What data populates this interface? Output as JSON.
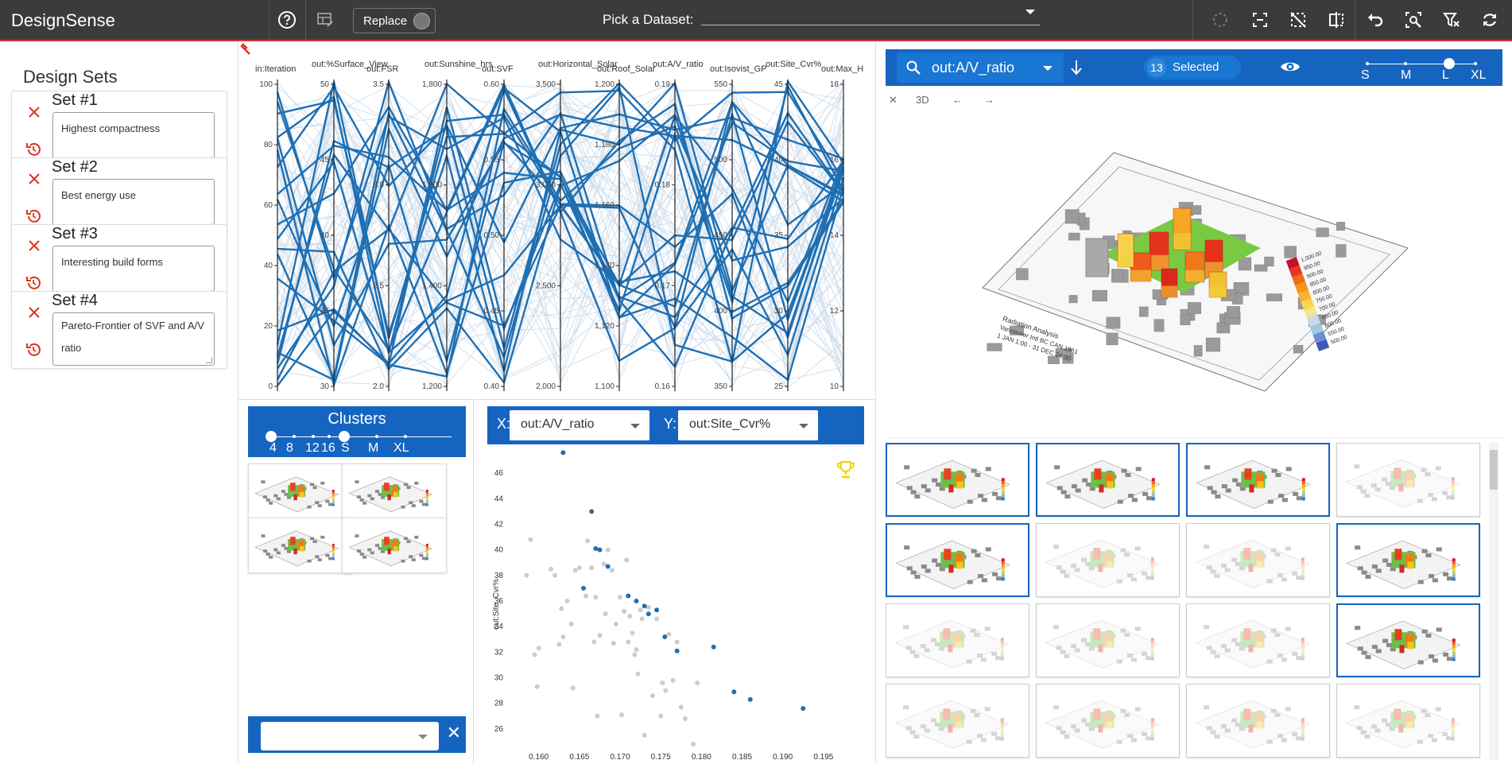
{
  "app": {
    "title": "DesignSense"
  },
  "toolbar": {
    "help_icon": "help-circle-icon",
    "table_icon": "table-edit-icon",
    "replace_label": "Replace",
    "dataset_label": "Pick a Dataset:",
    "dataset_value": "",
    "right_icons": [
      "lasso-select-icon",
      "box-select-icon",
      "deselect-icon",
      "split-view-icon",
      "undo-icon",
      "zoom-select-icon",
      "clear-filter-icon",
      "refresh-icon"
    ]
  },
  "sidebar": {
    "title": "Design Sets",
    "sets": [
      {
        "name": "Set #1",
        "note": "Highest compactness"
      },
      {
        "name": "Set #2",
        "note": "Best energy use"
      },
      {
        "name": "Set #3",
        "note": "Interesting build forms"
      },
      {
        "name": "Set #4",
        "note": "Pareto-Frontier of SVF and A/V ratio"
      }
    ]
  },
  "parallel": {
    "axes": [
      {
        "label": "in:Iteration",
        "ticks": [
          "100",
          "80",
          "60",
          "40",
          "20",
          "0"
        ]
      },
      {
        "label": "out:%Surface_View",
        "ticks": [
          "50",
          "45",
          "40",
          "35",
          "30"
        ]
      },
      {
        "label": "out:FSR",
        "ticks": [
          "3.5",
          "3.0",
          "2.5",
          "2.0"
        ]
      },
      {
        "label": "out:Sunshine_hrs",
        "ticks": [
          "1,800",
          "1,600",
          "1,400",
          "1,200"
        ]
      },
      {
        "label": "out:SVF",
        "ticks": [
          "0.60",
          "0.55",
          "0.50",
          "0.45",
          "0.40"
        ]
      },
      {
        "label": "out:Horizontal_Solar",
        "ticks": [
          "3,500",
          "3,000",
          "2,500",
          "2,000"
        ]
      },
      {
        "label": "out:Roof_Solar",
        "ticks": [
          "1,200",
          "1,180",
          "1,160",
          "1,140",
          "1,120",
          "1,100"
        ]
      },
      {
        "label": "out:A/V_ratio",
        "ticks": [
          "0.19",
          "0.18",
          "0.17",
          "0.16"
        ]
      },
      {
        "label": "out:Isovist_GP",
        "ticks": [
          "550",
          "500",
          "450",
          "400",
          "350"
        ]
      },
      {
        "label": "out:Site_Cvr%",
        "ticks": [
          "45",
          "40",
          "35",
          "30",
          "25"
        ]
      },
      {
        "label": "out:Max_H",
        "ticks": [
          "18",
          "16",
          "14",
          "12",
          "10"
        ]
      }
    ],
    "highlight_color": "#1f6fb3",
    "context_color": "#c9d9ea"
  },
  "clusters": {
    "title": "Clusters",
    "scale_labels": [
      "4",
      "8",
      "12",
      "16",
      "S",
      "M",
      "XL"
    ],
    "select_value": "",
    "clear_icon": "close-icon"
  },
  "scatter": {
    "x_tag": "X:",
    "y_tag": "Y:",
    "x_value": "out:A/V_ratio",
    "y_value": "out:Site_Cvr%",
    "trophy_icon": "trophy-icon",
    "chart_data": {
      "type": "scatter",
      "xlabel": "out:A/V_ratio",
      "ylabel": "out:Site_Cvr%",
      "xlim": [
        0.157,
        0.2
      ],
      "ylim": [
        24.5,
        47
      ],
      "xticks": [
        0.16,
        0.165,
        0.17,
        0.175,
        0.18,
        0.185,
        0.19,
        0.195
      ],
      "yticks": [
        26,
        28,
        30,
        32,
        34,
        36,
        38,
        40,
        42,
        44,
        46
      ],
      "series": [
        {
          "color": "#cccccc",
          "points": [
            [
              0.1585,
              38
            ],
            [
              0.159,
              40.8
            ],
            [
              0.1595,
              31.8
            ],
            [
              0.1598,
              29.3
            ],
            [
              0.16,
              32.3
            ],
            [
              0.1615,
              38.5
            ],
            [
              0.162,
              38
            ],
            [
              0.1625,
              32.6
            ],
            [
              0.1628,
              35.4
            ],
            [
              0.163,
              33.2
            ],
            [
              0.1635,
              36
            ],
            [
              0.164,
              34.2
            ],
            [
              0.1642,
              29.2
            ],
            [
              0.1645,
              38.4
            ],
            [
              0.165,
              38.6
            ],
            [
              0.1658,
              36.4
            ],
            [
              0.166,
              40.7
            ],
            [
              0.1665,
              38.6
            ],
            [
              0.1668,
              32.8
            ],
            [
              0.167,
              36.3
            ],
            [
              0.1672,
              27
            ],
            [
              0.1675,
              33.3
            ],
            [
              0.168,
              38.9
            ],
            [
              0.1682,
              35
            ],
            [
              0.1685,
              40
            ],
            [
              0.169,
              38.4
            ],
            [
              0.1692,
              32.7
            ],
            [
              0.1695,
              34.2
            ],
            [
              0.17,
              36.3
            ],
            [
              0.1702,
              27.1
            ],
            [
              0.1705,
              35.2
            ],
            [
              0.1708,
              39.2
            ],
            [
              0.171,
              32.8
            ],
            [
              0.1712,
              34.8
            ],
            [
              0.1715,
              33.5
            ],
            [
              0.1718,
              31.8
            ],
            [
              0.172,
              32.2
            ],
            [
              0.1722,
              30.3
            ],
            [
              0.1725,
              35.3
            ],
            [
              0.1727,
              34.6
            ],
            [
              0.173,
              25.5
            ],
            [
              0.1735,
              35.5
            ],
            [
              0.174,
              28.6
            ],
            [
              0.1745,
              34.6
            ],
            [
              0.175,
              27
            ],
            [
              0.1752,
              29.6
            ],
            [
              0.1756,
              29
            ],
            [
              0.176,
              33.4
            ],
            [
              0.1765,
              29.8
            ],
            [
              0.177,
              32.8
            ],
            [
              0.1775,
              27.7
            ],
            [
              0.178,
              26.8
            ],
            [
              0.179,
              24.8
            ],
            [
              0.1795,
              29.6
            ]
          ]
        },
        {
          "color": "#1f6fb3",
          "points": [
            [
              0.163,
              47.6
            ],
            [
              0.1655,
              37
            ],
            [
              0.1665,
              43
            ],
            [
              0.167,
              40.1
            ],
            [
              0.1675,
              40
            ],
            [
              0.1685,
              38.7
            ],
            [
              0.171,
              36.4
            ],
            [
              0.172,
              36
            ],
            [
              0.173,
              35.6
            ],
            [
              0.1735,
              35
            ],
            [
              0.1745,
              35.3
            ],
            [
              0.1755,
              33.2
            ],
            [
              0.177,
              32.1
            ],
            [
              0.1815,
              32.4
            ],
            [
              0.184,
              28.9
            ],
            [
              0.186,
              28.3
            ],
            [
              0.1925,
              27.6
            ]
          ]
        }
      ]
    }
  },
  "right": {
    "metric_value": "out:A/V_ratio",
    "selected_count": "13",
    "selected_label": "Selected",
    "size_labels": [
      "S",
      "M",
      "L",
      "XL"
    ],
    "viewer_tools": [
      "✕",
      "3D",
      "←",
      "→"
    ],
    "legend_title": "Radiation Analysis",
    "legend_sub1": "Vancouver Intl BC CAN 1961",
    "legend_sub2": "1 JAN 1:00 - 31 DEC 24:00",
    "legend_values": [
      "1,000.00",
      "950.00",
      "900.00",
      "850.00",
      "800.00",
      "750.00",
      "700.00",
      "650.00",
      "600.00",
      "550.00",
      "500.00"
    ],
    "grid_selected": [
      true,
      true,
      true,
      false,
      true,
      false,
      false,
      true,
      false,
      false,
      false,
      true,
      false,
      false,
      false,
      false
    ]
  }
}
